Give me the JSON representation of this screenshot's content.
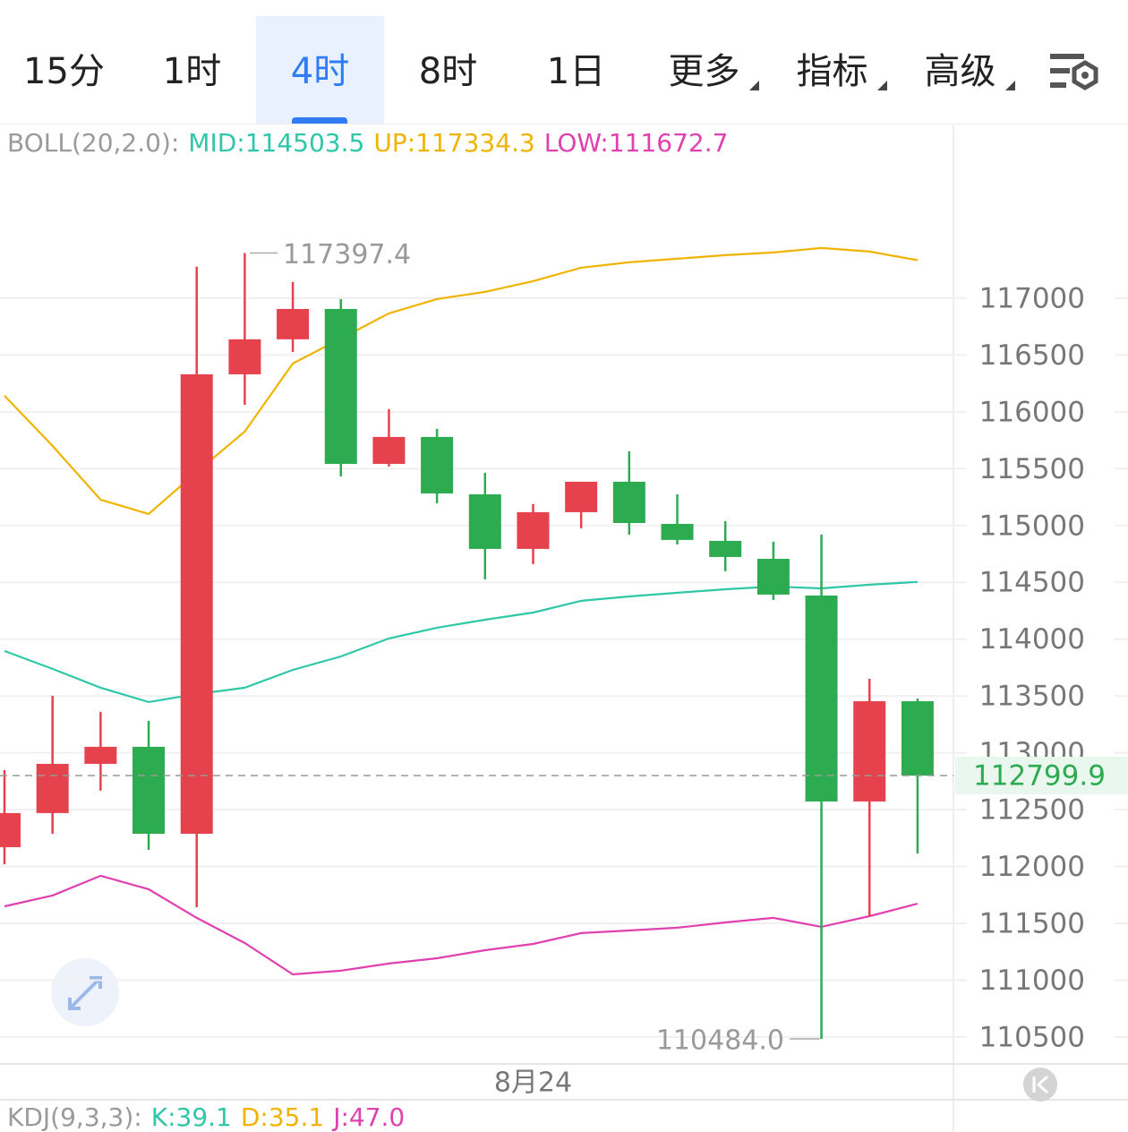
{
  "tabs": [
    {
      "label": "15分"
    },
    {
      "label": "1时"
    },
    {
      "label": "4时",
      "selected": true
    },
    {
      "label": "8时"
    },
    {
      "label": "1日"
    },
    {
      "label": "更多",
      "menu": true
    },
    {
      "label": "指标",
      "menu": true
    },
    {
      "label": "高级",
      "menu": true
    }
  ],
  "chart_data": {
    "type": "candlestick",
    "legend": [
      {
        "text": "BOLL(20,2.0):",
        "color": "#9a9a9a"
      },
      {
        "text": "MID:114503.5",
        "color": "#2ec7a8"
      },
      {
        "text": "UP:117334.3",
        "color": "#f0b400"
      },
      {
        "text": "LOW:111672.7",
        "color": "#e040b0"
      }
    ],
    "categories": [
      null,
      null,
      null,
      null,
      null,
      null,
      null,
      null,
      null,
      null,
      null,
      "8月24",
      null,
      null,
      null,
      null,
      null,
      null,
      null,
      null
    ],
    "open": [
      112170,
      112470,
      112903,
      113053,
      112288,
      116330,
      116638,
      116905,
      115542,
      115779,
      115274,
      114794,
      115117,
      115385,
      115014,
      114865,
      114707,
      114384,
      112572,
      113454
    ],
    "high": [
      112848,
      113502,
      113360,
      113281,
      117276,
      117397.4,
      117142,
      116992,
      116023,
      115850,
      115464,
      115188,
      115385,
      115653,
      115274,
      115038,
      114857,
      114920,
      113651,
      113478
    ],
    "low": [
      112020,
      112288,
      112667,
      112147,
      111642,
      116062,
      116527,
      115432,
      115519,
      115196,
      114526,
      114660,
      114975,
      114920,
      114833,
      114597,
      114345,
      110484.0,
      111563,
      112115
    ],
    "close": [
      112470,
      112903,
      113053,
      112288,
      116330,
      116638,
      116905,
      115542,
      115779,
      115282,
      114794,
      115117,
      115385,
      115022,
      114873,
      114723,
      114392,
      112572,
      113454,
      112799.9
    ],
    "up_color": "#e5424d",
    "down_color": "#2dab50",
    "lines": [
      {
        "color": "#f0b400",
        "values": [
          116141,
          115700,
          115227,
          115101,
          115471,
          115826,
          116425,
          116645,
          116866,
          116992,
          117055,
          117150,
          117268,
          117315,
          117347,
          117378,
          117402,
          117441,
          117410,
          117334.3
        ]
      },
      {
        "color": "#2ec7a8",
        "values": [
          113896,
          113738,
          113573,
          113447,
          113517,
          113573,
          113730,
          113848,
          114006,
          114101,
          114171,
          114234,
          114337,
          114376,
          114408,
          114439,
          114463,
          114447,
          114479,
          114503.5
        ]
      },
      {
        "color": "#e040b0",
        "values": [
          111650,
          111745,
          111918,
          111800,
          111548,
          111327,
          111051,
          111083,
          111146,
          111193,
          111264,
          111319,
          111414,
          111437,
          111461,
          111508,
          111548,
          111469,
          111563,
          111672.7
        ]
      }
    ],
    "annotations": [
      {
        "value": 117397.4,
        "label": "117397.4"
      },
      {
        "value": 110484.0,
        "label": "110484.0"
      }
    ],
    "last_price": {
      "value": 112799.9,
      "label": "112799.9"
    },
    "ylim": [
      110263,
      118520
    ],
    "yticks": [
      110500,
      111000,
      111500,
      112000,
      112500,
      113000,
      113500,
      114000,
      114500,
      115000,
      115500,
      116000,
      116500,
      117000
    ],
    "grid": true,
    "kdj_legend": [
      {
        "text": "KDJ(9,3,3):",
        "color": "#9a9a9a"
      },
      {
        "text": "K:39.1",
        "color": "#2ec7a8"
      },
      {
        "text": "D:35.1",
        "color": "#f0b400"
      },
      {
        "text": "J:47.0",
        "color": "#e040b0"
      }
    ]
  }
}
